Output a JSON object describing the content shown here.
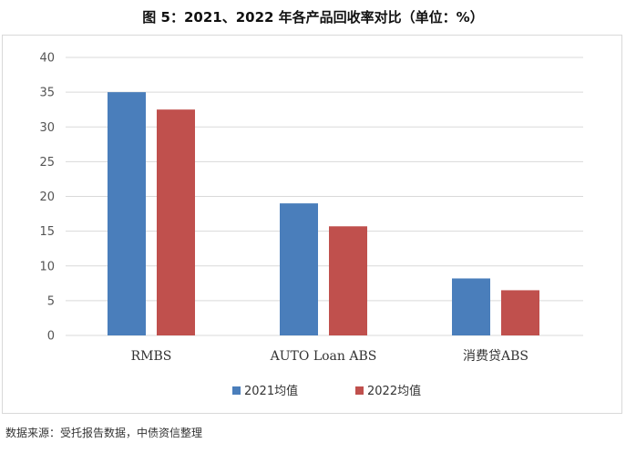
{
  "figure_title": "图 5：2021、2022 年各产品回收率对比（单位：%）",
  "source_note": "数据来源：受托报告数据，中债资信整理",
  "chart_data": {
    "type": "bar",
    "title": "图 5：2021、2022 年各产品回收率对比（单位：%）",
    "unit": "%",
    "xlabel": "",
    "ylabel": "",
    "categories": [
      "RMBS",
      "AUTO Loan ABS",
      "消费贷ABS"
    ],
    "series": [
      {
        "name": "2021均值",
        "color": "#4a7ebb",
        "values": [
          35,
          19,
          8.2
        ]
      },
      {
        "name": "2022均值",
        "color": "#c0504d",
        "values": [
          32.5,
          15.7,
          6.5
        ]
      }
    ],
    "ylim": [
      0,
      40
    ],
    "yticks": [
      0,
      5,
      10,
      15,
      20,
      25,
      30,
      35,
      40
    ],
    "ytick_labels": [
      "0",
      "5",
      "10",
      "15",
      "20",
      "25",
      "30",
      "35",
      "40"
    ],
    "grid": true,
    "legend_position": "bottom-center",
    "gridline_color": "#d9d9d9"
  }
}
